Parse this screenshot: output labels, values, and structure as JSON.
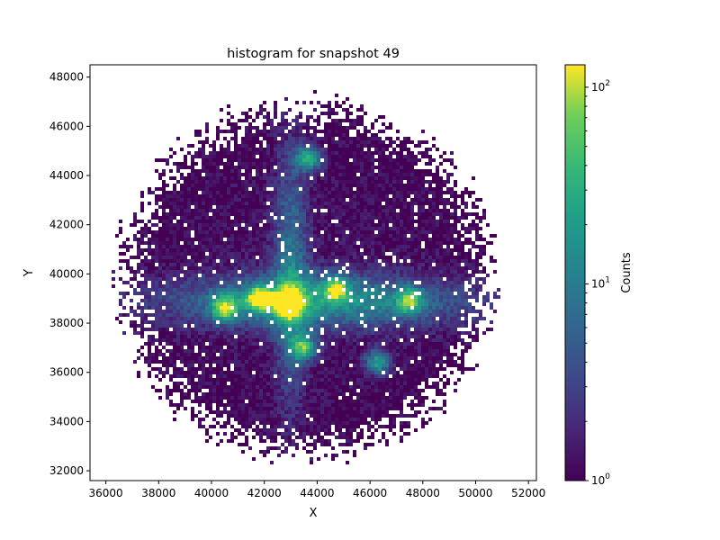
{
  "chart_data": {
    "type": "heatmap",
    "title": "histogram for snapshot 49",
    "xlabel": "X",
    "ylabel": "Y",
    "xlim": [
      35400,
      52300
    ],
    "ylim": [
      31600,
      48500
    ],
    "x_ticks": [
      36000,
      38000,
      40000,
      42000,
      44000,
      46000,
      48000,
      50000,
      52000
    ],
    "y_ticks": [
      32000,
      34000,
      36000,
      38000,
      40000,
      42000,
      44000,
      46000,
      48000
    ],
    "x_tick_labels": [
      "36000",
      "38000",
      "40000",
      "42000",
      "44000",
      "46000",
      "48000",
      "50000",
      "52000"
    ],
    "y_tick_labels": [
      "32000",
      "34000",
      "36000",
      "38000",
      "40000",
      "42000",
      "44000",
      "46000",
      "48000"
    ],
    "colormap": "viridis",
    "color_scale": "log",
    "colorbar": {
      "label": "Counts",
      "range": [
        1,
        130
      ],
      "major_ticks": [
        1,
        10,
        100
      ],
      "major_tick_labels": [
        "10",
        "10",
        "10"
      ],
      "major_tick_exponents": [
        "0",
        "1",
        "2"
      ]
    },
    "grid": false,
    "structure": {
      "description_points": [
        {
          "x": 42900,
          "y": 38800,
          "counts": 100
        },
        {
          "x": 41800,
          "y": 39000,
          "counts": 60
        },
        {
          "x": 40500,
          "y": 38600,
          "counts": 50
        },
        {
          "x": 43700,
          "y": 44700,
          "counts": 40
        },
        {
          "x": 43500,
          "y": 37000,
          "counts": 40
        },
        {
          "x": 46300,
          "y": 36400,
          "counts": 30
        },
        {
          "x": 44700,
          "y": 39400,
          "counts": 30
        },
        {
          "x": 47500,
          "y": 38900,
          "counts": 25
        }
      ]
    }
  }
}
